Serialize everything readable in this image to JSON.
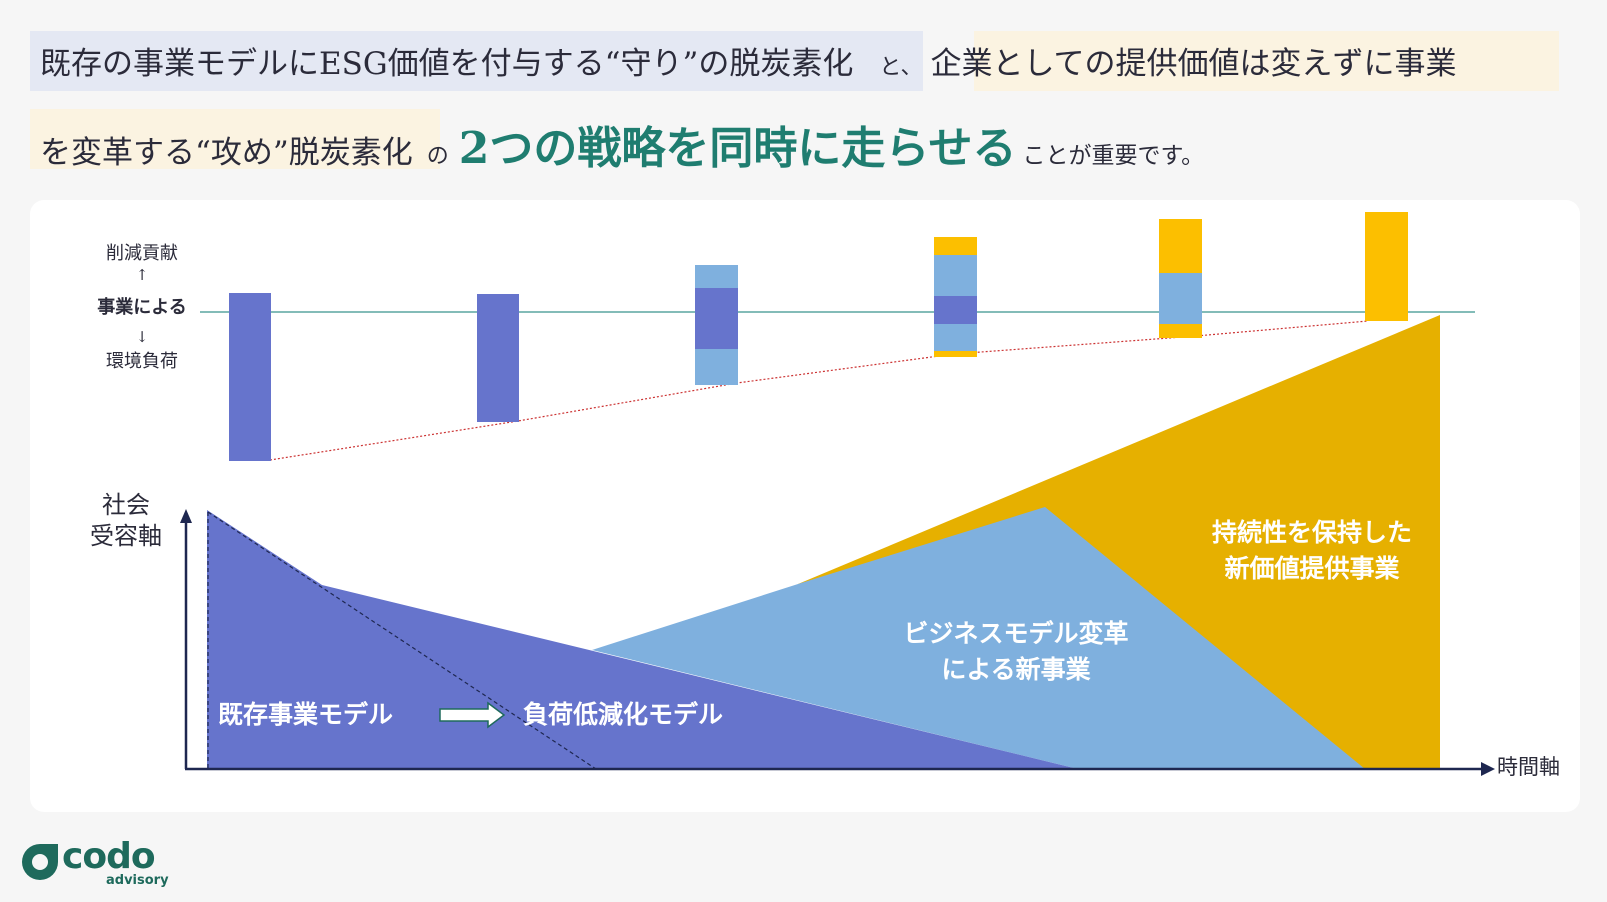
{
  "headline": {
    "defense": "既存の事業モデルにESG価値を付与する“守り”の脱炭素化",
    "and": "と、",
    "offense_part1": "企業としての提供価値は変えずに事業",
    "offense_part2": "を変革する“攻め”脱炭素化",
    "no": "の",
    "emphasis": "2つの戦略を同時に走らせる",
    "tail": "ことが重要です。"
  },
  "upper_axis": {
    "label_top": "削減貢献",
    "arrow_up": "↑",
    "label_mid": "事業による",
    "arrow_down": "↓",
    "label_bottom": "環境負荷"
  },
  "lower_axis": {
    "y_label_line1": "社会",
    "y_label_line2": "受容軸",
    "x_label": "時間軸"
  },
  "regions": {
    "existing": "既存事業モデル",
    "reduced": "負荷低減化モデル",
    "biz_line1": "ビジネスモデル変革",
    "biz_line2": "による新事業",
    "sus_line1": "持続性を保持した",
    "sus_line2": "新価値提供事業"
  },
  "colors": {
    "dark_blue": "#6674cc",
    "light_blue": "#7fb0de",
    "gold": "#e6b000",
    "bar_gold": "#fcbf00",
    "teal_line": "#5aa5a0",
    "red_dotted": "#cc3333",
    "navy": "#1e2750",
    "emphasis": "#1f7d70"
  },
  "logo": {
    "word": "codo",
    "sub": "advisory"
  }
}
